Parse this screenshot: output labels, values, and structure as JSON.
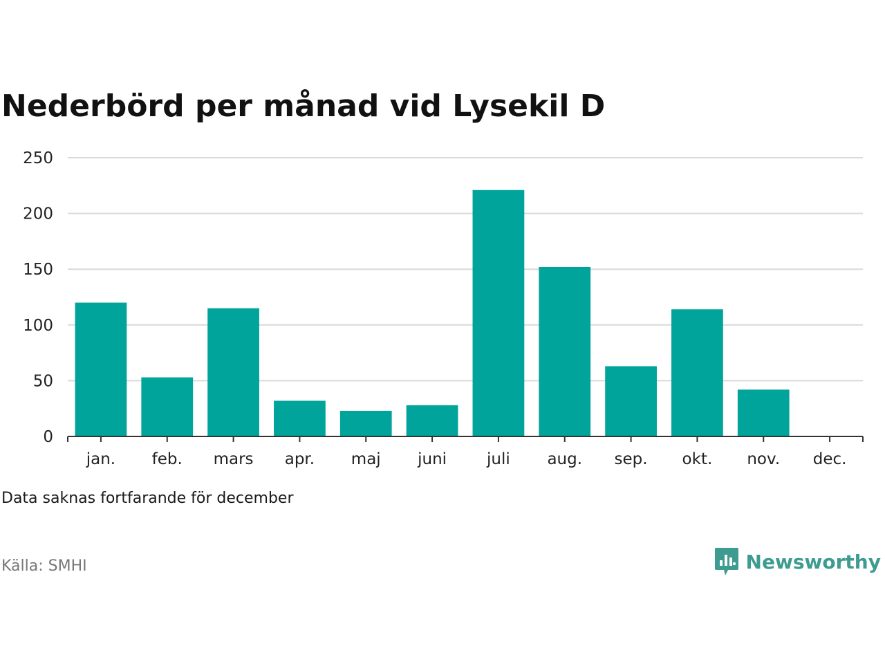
{
  "chart_data": {
    "type": "bar",
    "title": "Nederbörd per månad vid Lysekil D",
    "categories": [
      "jan.",
      "feb.",
      "mars",
      "apr.",
      "maj",
      "juni",
      "juli",
      "aug.",
      "sep.",
      "okt.",
      "nov.",
      "dec."
    ],
    "values": [
      120,
      53,
      115,
      32,
      23,
      28,
      221,
      152,
      63,
      114,
      42,
      null
    ],
    "ylim": [
      0,
      250
    ],
    "yticks": [
      0,
      50,
      100,
      150,
      200,
      250
    ],
    "grid": true,
    "bar_color": "#00a49a"
  },
  "note": "Data saknas fortfarande för december",
  "source": "Källa: SMHI",
  "brand": {
    "name": "Newsworthy",
    "color": "#3d9b90",
    "icon": "newsworthy-logo-icon"
  }
}
